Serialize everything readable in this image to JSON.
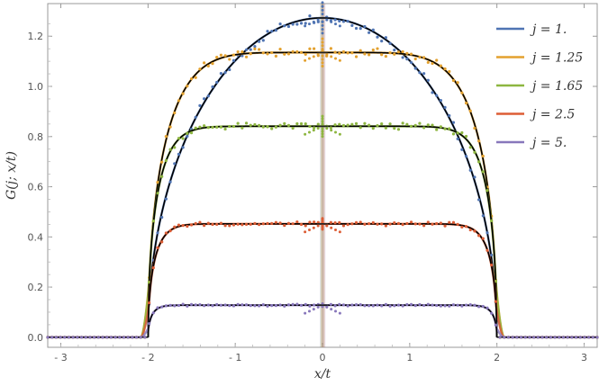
{
  "chart_data": {
    "type": "line",
    "title": "",
    "xlabel": "x/t",
    "ylabel": "G(j; x/t)",
    "xlim": [
      -3.15,
      3.15
    ],
    "ylim": [
      -0.04,
      1.33
    ],
    "x_ticks": [
      -3,
      -2,
      -1,
      0,
      1,
      2,
      3
    ],
    "x_tick_labels": [
      "- 3",
      "- 2",
      "- 1",
      "0",
      "1",
      "2",
      "3"
    ],
    "y_ticks": [
      0.0,
      0.2,
      0.4,
      0.6,
      0.8,
      1.0,
      1.2
    ],
    "y_tick_labels": [
      "0.0",
      "0.2",
      "0.4",
      "0.6",
      "0.8",
      "1.0",
      "1.2"
    ],
    "legend_position": "top-right",
    "series": [
      {
        "name": "j = 1.",
        "color": "#4f74b3",
        "plateau": 1.273,
        "shape": 1.0
      },
      {
        "name": "j = 1.25",
        "color": "#e3a12f",
        "plateau": 1.135,
        "shape": 3.0
      },
      {
        "name": "j = 1.65",
        "color": "#8db640",
        "plateau": 0.841,
        "shape": 5.5
      },
      {
        "name": "j = 2.5",
        "color": "#dd5d35",
        "plateau": 0.452,
        "shape": 8.0
      },
      {
        "name": "j = 5.",
        "color": "#8877bb",
        "plateau": 0.128,
        "shape": 14.0
      }
    ],
    "theory_curve_color": "#000000",
    "support_edge": 2.0
  }
}
